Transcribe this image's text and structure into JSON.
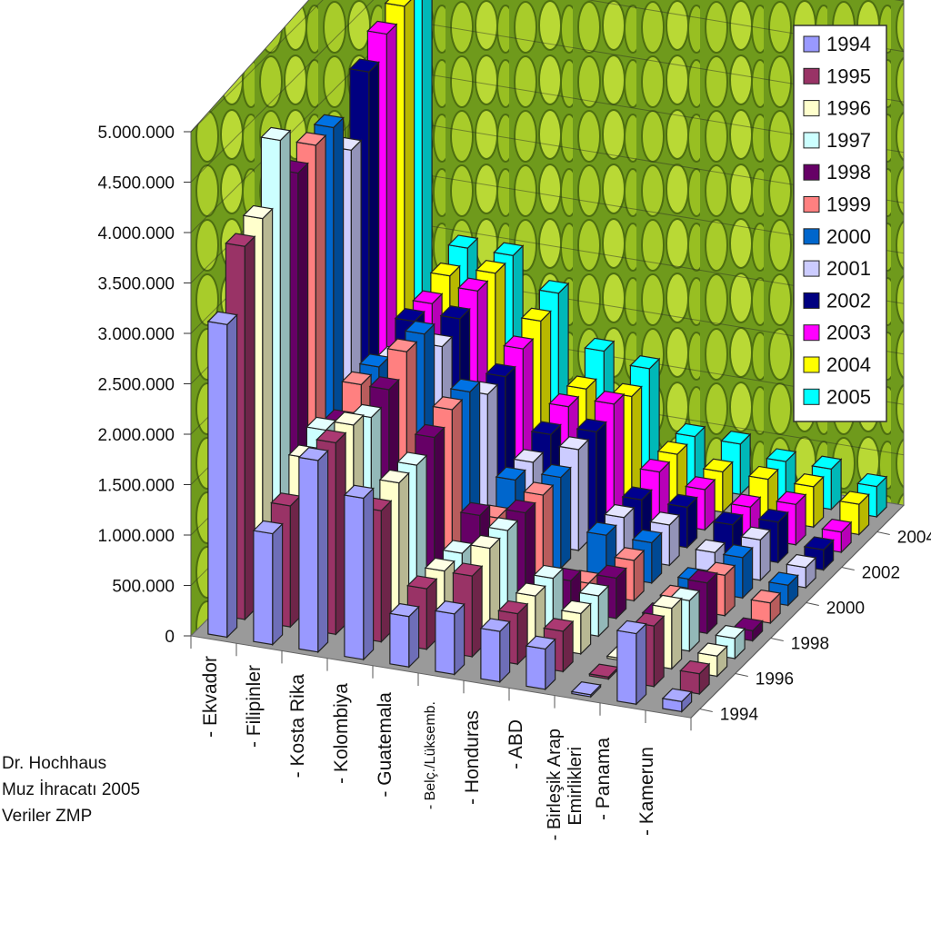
{
  "chart_data": {
    "type": "bar",
    "subtype": "3d-column",
    "title": "",
    "xlabel": "",
    "ylabel": "",
    "ylim": [
      0,
      5000000
    ],
    "yticks": [
      "0",
      "500.000",
      "1.000.000",
      "1.500.000",
      "2.000.000",
      "2.500.000",
      "3.000.000",
      "3.500.000",
      "4.000.000",
      "4.500.000",
      "5.000.000"
    ],
    "depth_ticks": [
      "1994",
      "1996",
      "1998",
      "2000",
      "2002",
      "2004"
    ],
    "categories": [
      "- Ekvador",
      "- Filipinler",
      "- Kosta Rika",
      "- Kolombiya",
      "- Guatemala",
      "- Belç./Lüksemb.",
      "- Honduras",
      "- ABD",
      "- Birleşik Arap Emirlikleri",
      "- Panama",
      "- Kamerun"
    ],
    "legend_position": "top-right",
    "grid": true,
    "series": [
      {
        "name": "1994",
        "color": "#9999FF",
        "values": [
          3100000,
          1100000,
          1900000,
          1600000,
          500000,
          600000,
          500000,
          400000,
          20000,
          700000,
          100000
        ]
      },
      {
        "name": "1995",
        "color": "#993366",
        "values": [
          3700000,
          1200000,
          1900000,
          1300000,
          600000,
          800000,
          500000,
          400000,
          20000,
          600000,
          200000
        ]
      },
      {
        "name": "1996",
        "color": "#FFFFCC",
        "values": [
          3800000,
          1500000,
          1900000,
          1400000,
          600000,
          900000,
          500000,
          400000,
          20000,
          600000,
          200000
        ]
      },
      {
        "name": "1997",
        "color": "#CCFFFF",
        "values": [
          4400000,
          1600000,
          1800000,
          1400000,
          600000,
          900000,
          500000,
          400000,
          50000,
          500000,
          200000
        ]
      },
      {
        "name": "1998",
        "color": "#660066",
        "values": [
          3900000,
          1500000,
          1900000,
          1500000,
          800000,
          900000,
          300000,
          400000,
          100000,
          500000,
          100000
        ]
      },
      {
        "name": "1999",
        "color": "#FF8080",
        "values": [
          4000000,
          1700000,
          2100000,
          1600000,
          600000,
          900000,
          100000,
          400000,
          100000,
          400000,
          200000
        ]
      },
      {
        "name": "2000",
        "color": "#0066CC",
        "values": [
          4000000,
          1700000,
          2100000,
          1600000,
          800000,
          900000,
          400000,
          400000,
          100000,
          400000,
          200000
        ]
      },
      {
        "name": "2001",
        "color": "#CCCCFF",
        "values": [
          3600000,
          1600000,
          1800000,
          1400000,
          800000,
          1000000,
          400000,
          400000,
          200000,
          400000,
          200000
        ]
      },
      {
        "name": "2002",
        "color": "#000080",
        "values": [
          4200000,
          1800000,
          1900000,
          1400000,
          900000,
          1000000,
          400000,
          400000,
          300000,
          400000,
          200000
        ]
      },
      {
        "name": "2003",
        "color": "#FF00FF",
        "values": [
          4400000,
          1800000,
          2000000,
          1500000,
          1000000,
          1100000,
          500000,
          400000,
          300000,
          400000,
          200000
        ]
      },
      {
        "name": "2004",
        "color": "#FFFF00",
        "values": [
          4500000,
          1900000,
          2000000,
          1600000,
          1000000,
          1000000,
          500000,
          400000,
          400000,
          400000,
          300000
        ]
      },
      {
        "name": "2005",
        "color": "#00FFFF",
        "values": [
          4600000,
          2000000,
          2000000,
          1700000,
          1200000,
          1100000,
          500000,
          500000,
          400000,
          400000,
          300000
        ]
      }
    ]
  },
  "credit": {
    "line1": "Dr. Hochhaus",
    "line2": "Muz İhracatı 2005",
    "line3": "Veriler ZMP"
  }
}
